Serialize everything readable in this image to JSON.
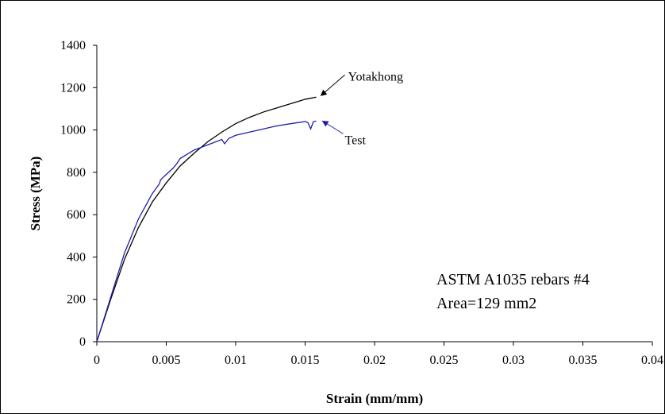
{
  "chart_data": {
    "type": "line",
    "xlabel": "Strain (mm/mm)",
    "ylabel": "Stress (MPa)",
    "xlim": [
      0,
      0.04
    ],
    "ylim": [
      0,
      1400
    ],
    "x_ticks": [
      "0",
      "0.005",
      "0.01",
      "0.015",
      "0.02",
      "0.025",
      "0.03",
      "0.035",
      "0.04"
    ],
    "y_ticks": [
      "0",
      "200",
      "400",
      "600",
      "800",
      "1000",
      "1200",
      "1400"
    ],
    "grid": false,
    "series": [
      {
        "name": "Yotakhong",
        "color": "#000000",
        "x": [
          0,
          0.001,
          0.002,
          0.003,
          0.004,
          0.005,
          0.006,
          0.007,
          0.008,
          0.009,
          0.01,
          0.011,
          0.012,
          0.013,
          0.014,
          0.015,
          0.0158
        ],
        "y": [
          0,
          200,
          390,
          540,
          660,
          750,
          830,
          890,
          945,
          990,
          1030,
          1060,
          1085,
          1105,
          1125,
          1145,
          1155
        ]
      },
      {
        "name": "Test",
        "color": "#1f1fa8",
        "x": [
          0,
          0.001,
          0.002,
          0.003,
          0.004,
          0.0045,
          0.0046,
          0.005,
          0.0055,
          0.0058,
          0.006,
          0.007,
          0.008,
          0.009,
          0.0092,
          0.0095,
          0.01,
          0.011,
          0.012,
          0.013,
          0.014,
          0.015,
          0.0152,
          0.0154,
          0.0156,
          0.0158
        ],
        "y": [
          0,
          210,
          420,
          580,
          700,
          745,
          765,
          790,
          820,
          845,
          865,
          905,
          930,
          955,
          935,
          960,
          975,
          990,
          1005,
          1020,
          1030,
          1040,
          1035,
          1005,
          1040,
          1042
        ]
      }
    ],
    "annotations": [
      {
        "text": "Yotakhong",
        "series": "Yotakhong"
      },
      {
        "text": "Test",
        "series": "Test"
      }
    ],
    "note_lines": [
      "ASTM A1035 rebars #4",
      "Area=129 mm2"
    ]
  }
}
